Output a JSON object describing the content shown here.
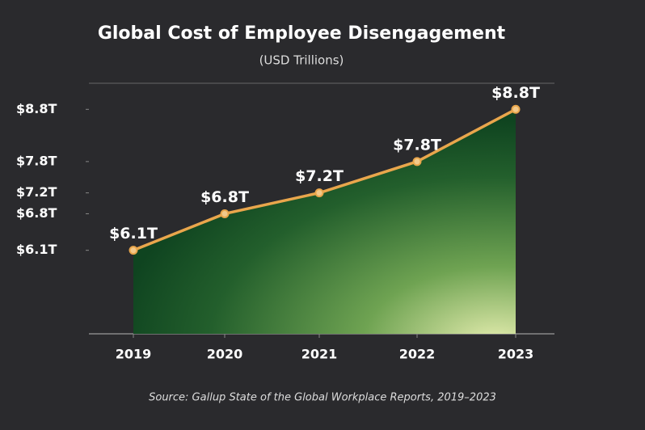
{
  "chart_data": {
    "type": "line",
    "title": "Global Cost of Employee Disengagement",
    "subtitle": "(USD Trillions)",
    "source": "Source: Gallup State of the Global Workplace Reports, 2019–2023",
    "categories": [
      "2019",
      "2020",
      "2021",
      "2022",
      "2023"
    ],
    "values": [
      6.1,
      6.8,
      7.2,
      7.8,
      8.8
    ],
    "value_labels": [
      "$6.1T",
      "$6.8T",
      "$7.2T",
      "$7.8T",
      "$8.8T"
    ],
    "color": "#e9a64c",
    "ylim": [
      4.5,
      9.3
    ],
    "yticks": [
      {
        "value": 6.1,
        "label": "$6.1T"
      },
      {
        "value": 6.8,
        "label": "$6.8T"
      },
      {
        "value": 7.2,
        "label": "$7.2T"
      },
      {
        "value": 7.8,
        "label": "$7.8T"
      },
      {
        "value": 8.8,
        "label": "$8.8T"
      }
    ],
    "grid": false
  }
}
